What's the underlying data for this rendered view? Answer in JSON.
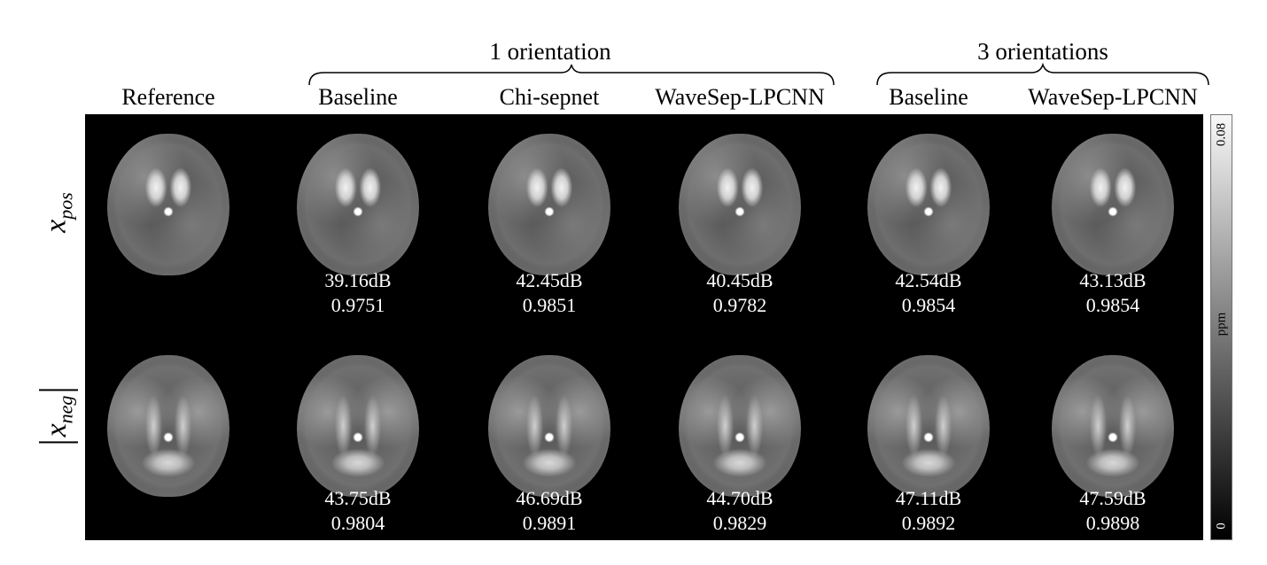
{
  "groups": {
    "one": "1 orientation",
    "three": "3 orientations"
  },
  "columns": [
    "Reference",
    "Baseline",
    "Chi-sepnet",
    "WaveSep-LPCNN",
    "Baseline",
    "WaveSep-LPCNN"
  ],
  "rows": [
    {
      "symbol": "x",
      "subscript": "pos",
      "absolute": false
    },
    {
      "symbol": "x",
      "subscript": "neg",
      "absolute": true
    }
  ],
  "metrics": {
    "pos": [
      null,
      {
        "psnr": "39.16dB",
        "ssim": "0.9751"
      },
      {
        "psnr": "42.45dB",
        "ssim": "0.9851"
      },
      {
        "psnr": "40.45dB",
        "ssim": "0.9782"
      },
      {
        "psnr": "42.54dB",
        "ssim": "0.9854"
      },
      {
        "psnr": "43.13dB",
        "ssim": "0.9854"
      }
    ],
    "neg": [
      null,
      {
        "psnr": "43.75dB",
        "ssim": "0.9804"
      },
      {
        "psnr": "46.69dB",
        "ssim": "0.9891"
      },
      {
        "psnr": "44.70dB",
        "ssim": "0.9829"
      },
      {
        "psnr": "47.11dB",
        "ssim": "0.9892"
      },
      {
        "psnr": "47.59dB",
        "ssim": "0.9898"
      }
    ]
  },
  "colorbar": {
    "max": "0.08",
    "min": "0",
    "unit": "ppm",
    "range": [
      0,
      0.08
    ]
  }
}
